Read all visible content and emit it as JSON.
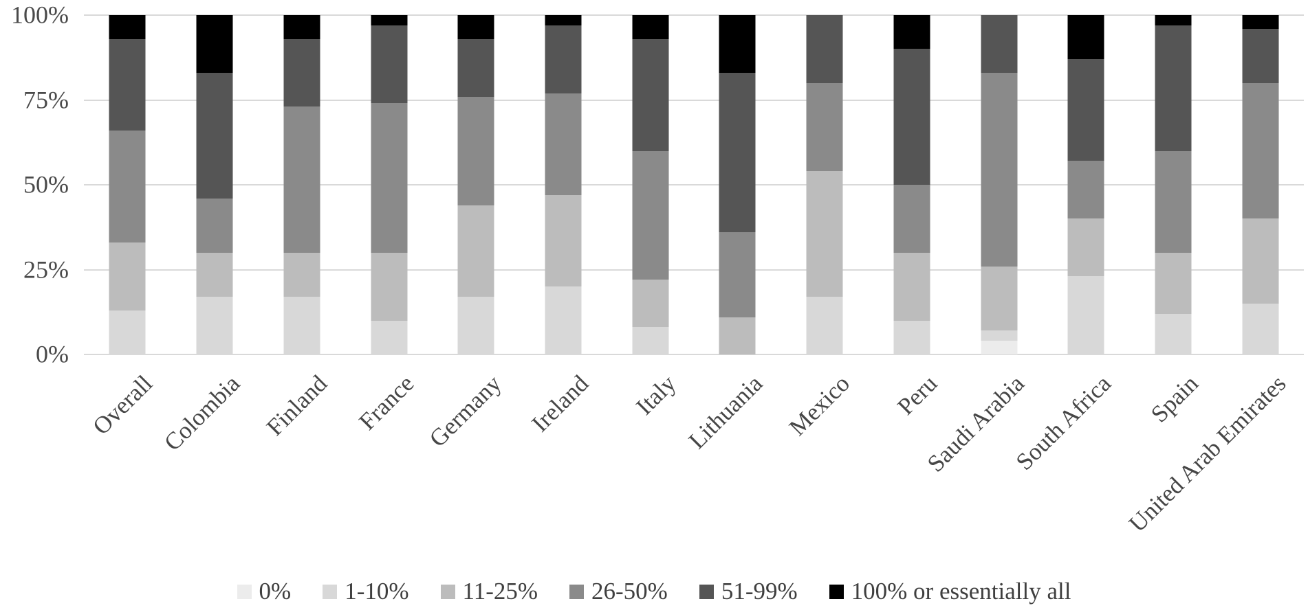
{
  "chart_data": {
    "type": "bar",
    "variant": "stacked-100-percent",
    "title": "",
    "xlabel": "",
    "ylabel": "",
    "ylim": [
      0,
      100
    ],
    "grid": true,
    "legend_position": "bottom",
    "gridline_color": "#d9d9d9",
    "axis_text_color": "#4a4a4a",
    "y_ticks": [
      {
        "label": "100%",
        "value": 100
      },
      {
        "label": "75%",
        "value": 75
      },
      {
        "label": "50%",
        "value": 50
      },
      {
        "label": "25%",
        "value": 25
      },
      {
        "label": "0%",
        "value": 0
      }
    ],
    "categories": [
      "Overall",
      "Colombia",
      "Finland",
      "France",
      "Germany",
      "Ireland",
      "Italy",
      "Lithuania",
      "Mexico",
      "Peru",
      "Saudi Arabia",
      "South Africa",
      "Spain",
      "United Arab Emirates"
    ],
    "series": [
      {
        "name": "0%",
        "color": "#ececec",
        "values": [
          0,
          0,
          0,
          0,
          0,
          0,
          0,
          0,
          0,
          0,
          4,
          0,
          0,
          0
        ]
      },
      {
        "name": "1-10%",
        "color": "#d8d8d8",
        "values": [
          13,
          17,
          17,
          10,
          17,
          20,
          8,
          0,
          17,
          10,
          3,
          23,
          12,
          15
        ]
      },
      {
        "name": "11-25%",
        "color": "#bcbcbc",
        "values": [
          20,
          13,
          13,
          20,
          27,
          27,
          14,
          11,
          37,
          20,
          19,
          17,
          18,
          25
        ]
      },
      {
        "name": "26-50%",
        "color": "#8a8a8a",
        "values": [
          33,
          16,
          43,
          44,
          32,
          30,
          38,
          25,
          26,
          20,
          57,
          17,
          30,
          40
        ]
      },
      {
        "name": "51-99%",
        "color": "#555555",
        "values": [
          27,
          37,
          20,
          23,
          17,
          20,
          33,
          47,
          20,
          40,
          17,
          30,
          37,
          16
        ]
      },
      {
        "name": "100% or essentially all",
        "color": "#000000",
        "values": [
          7,
          17,
          7,
          3,
          7,
          3,
          7,
          17,
          0,
          10,
          0,
          13,
          3,
          4
        ]
      }
    ]
  }
}
